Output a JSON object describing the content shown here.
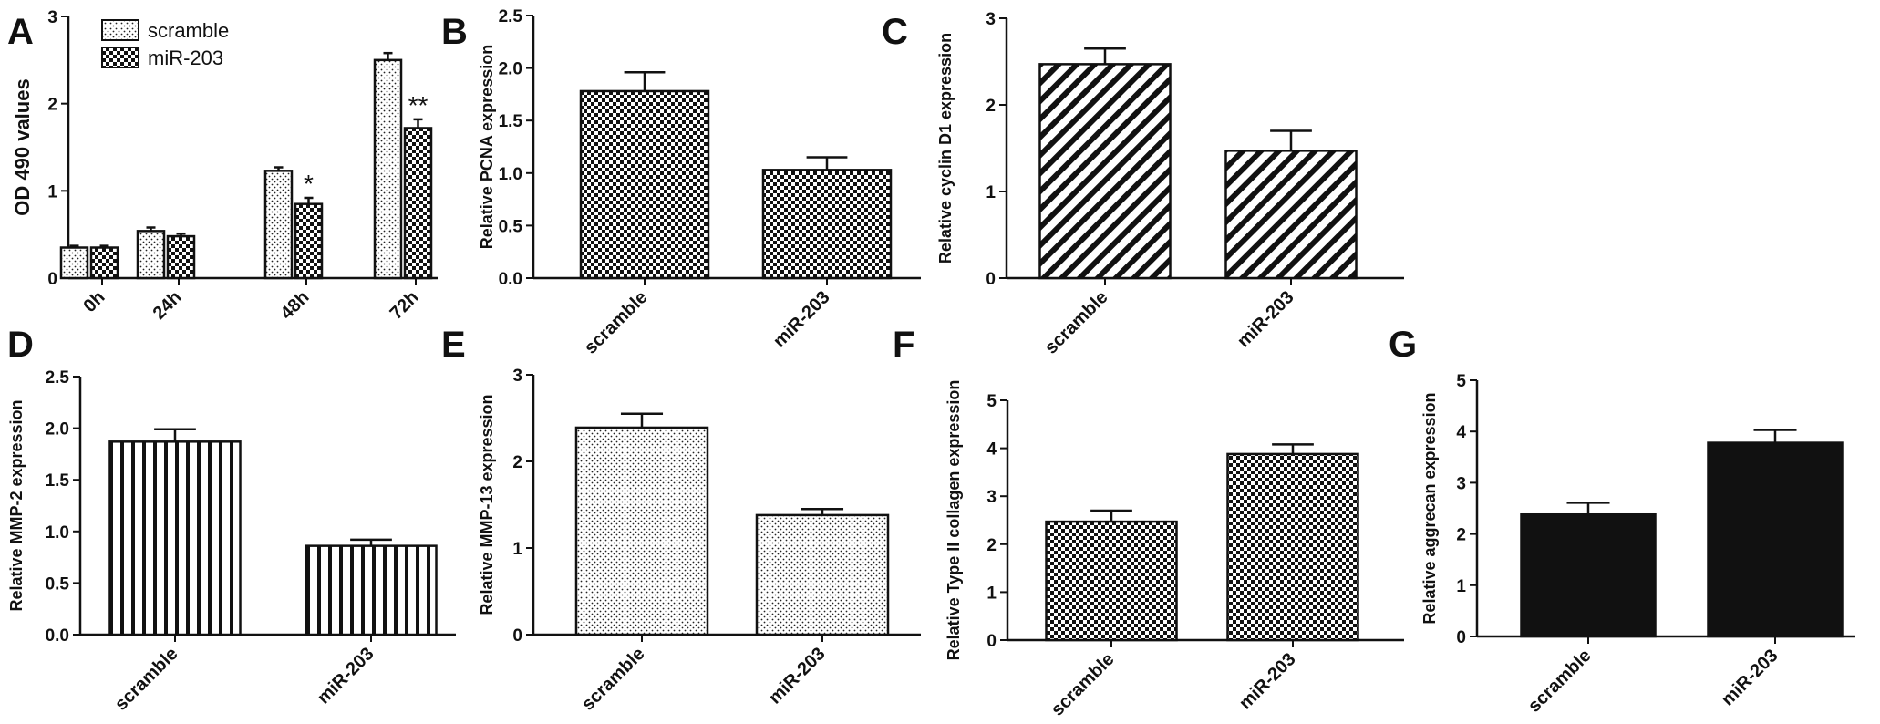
{
  "colors": {
    "ink": "#111111",
    "background": "#ffffff"
  },
  "chart_data": [
    {
      "panel": "A",
      "type": "bar",
      "categories": [
        "0h",
        "24h",
        "48h",
        "72h"
      ],
      "series": [
        {
          "name": "scramble",
          "pattern": "dots",
          "values": [
            0.35,
            0.54,
            1.23,
            2.5
          ],
          "errors": [
            0.02,
            0.04,
            0.04,
            0.08
          ]
        },
        {
          "name": "miR-203",
          "pattern": "checker",
          "values": [
            0.35,
            0.48,
            0.85,
            1.72
          ],
          "errors": [
            0.02,
            0.03,
            0.07,
            0.1
          ]
        }
      ],
      "annotations": [
        "",
        "",
        "*",
        "**"
      ],
      "ylabel": "OD 490 values",
      "ylim": [
        0,
        3
      ],
      "yticks": [
        "0",
        "1",
        "2",
        "3"
      ],
      "legend": "top-left"
    },
    {
      "panel": "B",
      "type": "bar",
      "pattern": "checker",
      "categories": [
        "scramble",
        "miR-203"
      ],
      "values": [
        1.78,
        1.03
      ],
      "errors": [
        0.18,
        0.12
      ],
      "ylabel": "Relative  PCNA expression",
      "ylim": [
        0,
        2.5
      ],
      "yticks": [
        "0.0",
        "0.5",
        "1.0",
        "1.5",
        "2.0",
        "2.5"
      ]
    },
    {
      "panel": "C",
      "type": "bar",
      "pattern": "diagonal",
      "categories": [
        "scramble",
        "miR-203"
      ],
      "values": [
        2.47,
        1.47
      ],
      "errors": [
        0.18,
        0.23
      ],
      "ylabel": "Relative  cyclin D1 expression",
      "ylim": [
        0,
        3
      ],
      "yticks": [
        "0",
        "1",
        "2",
        "3"
      ]
    },
    {
      "panel": "D",
      "type": "bar",
      "pattern": "vertical",
      "categories": [
        "scramble",
        "miR-203"
      ],
      "values": [
        1.87,
        0.86
      ],
      "errors": [
        0.12,
        0.06
      ],
      "ylabel": "Relative  MMP-2 expression",
      "ylim": [
        0,
        2.5
      ],
      "yticks": [
        "0.0",
        "0.5",
        "1.0",
        "1.5",
        "2.0",
        "2.5"
      ]
    },
    {
      "panel": "E",
      "type": "bar",
      "pattern": "dots",
      "categories": [
        "scramble",
        "miR-203"
      ],
      "values": [
        2.39,
        1.38
      ],
      "errors": [
        0.16,
        0.07
      ],
      "ylabel": "Relative  MMP-13 expression",
      "ylim": [
        0,
        3
      ],
      "yticks": [
        "0",
        "1",
        "2",
        "3"
      ]
    },
    {
      "panel": "F",
      "type": "bar",
      "pattern": "checker",
      "categories": [
        "scramble",
        "miR-203"
      ],
      "values": [
        2.47,
        3.88
      ],
      "errors": [
        0.23,
        0.2
      ],
      "ylabel": "Relative Type II collagen  expression",
      "ylim": [
        0,
        5
      ],
      "yticks": [
        "0",
        "1",
        "2",
        "3",
        "4",
        "5"
      ]
    },
    {
      "panel": "G",
      "type": "bar",
      "pattern": "solid",
      "categories": [
        "scramble",
        "miR-203"
      ],
      "values": [
        2.38,
        3.78
      ],
      "errors": [
        0.23,
        0.25
      ],
      "ylabel": "Relative aggrecan expression",
      "ylim": [
        0,
        5
      ],
      "yticks": [
        "0",
        "1",
        "2",
        "3",
        "4",
        "5"
      ]
    }
  ]
}
